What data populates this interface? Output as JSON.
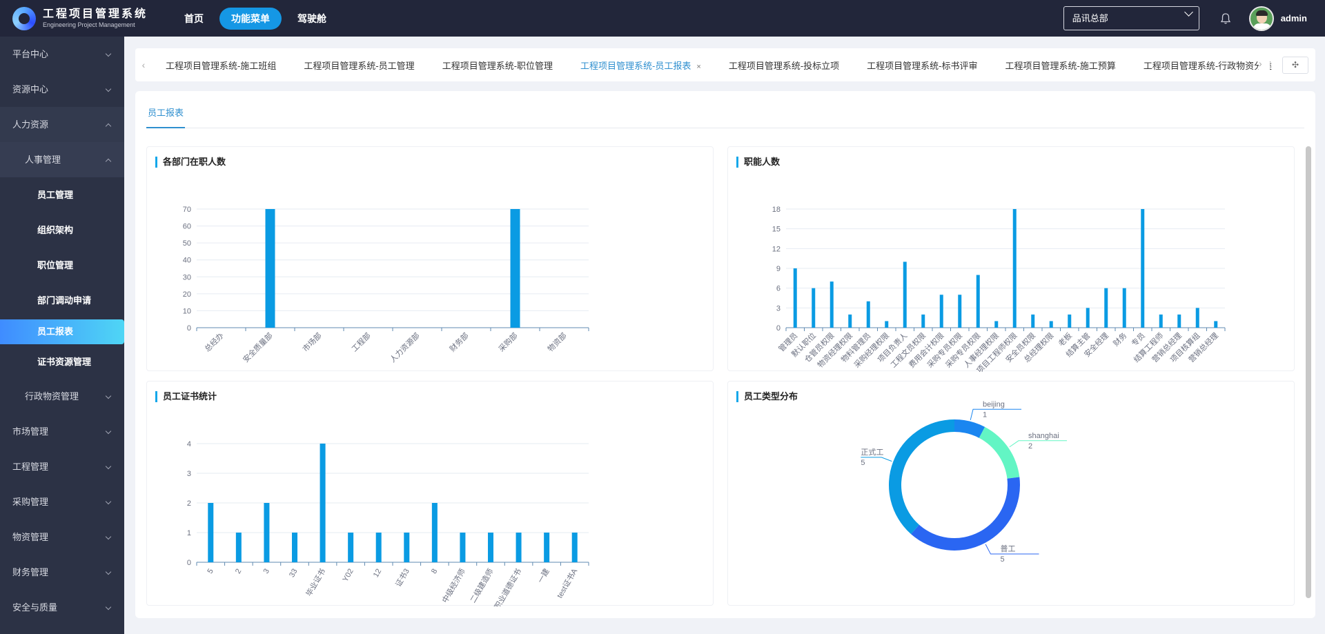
{
  "app": {
    "title": "工程项目管理系统",
    "subtitle": "Engineering Project Management"
  },
  "nav": [
    "首页",
    "功能菜单",
    "驾驶舱"
  ],
  "header": {
    "org": "品讯总部",
    "user": "admin"
  },
  "sidebar": {
    "items": [
      {
        "label": "平台中心",
        "level": 1
      },
      {
        "label": "资源中心",
        "level": 1
      },
      {
        "label": "人力资源",
        "level": 1,
        "open": true
      },
      {
        "label": "人事管理",
        "level": 2,
        "open": true
      },
      {
        "label": "员工管理",
        "level": 3
      },
      {
        "label": "组织架构",
        "level": 3
      },
      {
        "label": "职位管理",
        "level": 3
      },
      {
        "label": "部门调动申请",
        "level": 3
      },
      {
        "label": "员工报表",
        "level": 3,
        "active": true
      },
      {
        "label": "证书资源管理",
        "level": 3
      },
      {
        "label": "行政物资管理",
        "level": 2
      },
      {
        "label": "市场管理",
        "level": 1
      },
      {
        "label": "工程管理",
        "level": 1
      },
      {
        "label": "采购管理",
        "level": 1
      },
      {
        "label": "物资管理",
        "level": 1
      },
      {
        "label": "财务管理",
        "level": 1
      },
      {
        "label": "安全与质量",
        "level": 1
      }
    ]
  },
  "tabs": [
    {
      "label": "工程项目管理系统-施工班组"
    },
    {
      "label": "工程项目管理系统-员工管理"
    },
    {
      "label": "工程项目管理系统-职位管理"
    },
    {
      "label": "工程项目管理系统-员工报表",
      "active": true,
      "close": "×"
    },
    {
      "label": "工程项目管理系统-投标立项"
    },
    {
      "label": "工程项目管理系统-标书评审"
    },
    {
      "label": "工程项目管理系统-施工预算"
    },
    {
      "label": "工程项目管理系统-行政物资分类"
    }
  ],
  "subtab": "员工报表",
  "panels": {
    "dept": "各部门在职人数",
    "role": "职能人数",
    "cert": "员工证书统计",
    "type": "员工类型分布"
  },
  "chart_data": [
    {
      "type": "bar",
      "title": "各部门在职人数",
      "categories": [
        "总经办",
        "安全质量部",
        "市场部",
        "工程部",
        "人力资源部",
        "财务部",
        "采购部",
        "物资部"
      ],
      "values": [
        0,
        70,
        0,
        0,
        0,
        0,
        70,
        0
      ],
      "yticks": [
        0,
        10,
        20,
        30,
        40,
        50,
        60,
        70
      ],
      "ylim": [
        0,
        70
      ],
      "color": "#0a9be3"
    },
    {
      "type": "bar",
      "title": "职能人数",
      "categories": [
        "管理员",
        "默认职位",
        "仓管员权限",
        "物资经理权限",
        "物料管理员",
        "采购经理权限",
        "项目负责人",
        "工程文员权限",
        "费用会计权限",
        "采购专员权限",
        "采购专员权限",
        "人事经理权限",
        "项目工程师权限",
        "安全员权限",
        "总经理权限",
        "老板",
        "结算主管",
        "安全经理",
        "财务",
        "专员",
        "结算工程师",
        "营销总经理",
        "项目核算组",
        "营销总经理"
      ],
      "values": [
        9,
        6,
        7,
        2,
        4,
        1,
        10,
        2,
        5,
        5,
        8,
        1,
        18,
        2,
        1,
        2,
        3,
        6,
        6,
        18,
        2,
        2,
        3,
        1
      ],
      "yticks": [
        0,
        3,
        6,
        9,
        12,
        15,
        18
      ],
      "ylim": [
        0,
        18
      ],
      "color": "#0a9be3"
    },
    {
      "type": "bar",
      "title": "员工证书统计",
      "categories": [
        "5",
        "2",
        "3",
        "33",
        "毕业证书",
        "Y02",
        "12",
        "证书3",
        "8",
        "中级经济师",
        "二级建造师",
        "职业道德证书",
        "一建",
        "test证书A"
      ],
      "values": [
        2,
        1,
        2,
        1,
        4,
        1,
        1,
        1,
        2,
        1,
        1,
        1,
        1,
        1
      ],
      "yticks": [
        0,
        1,
        2,
        3,
        4
      ],
      "ylim": [
        0,
        4
      ],
      "color": "#0a9be3"
    },
    {
      "type": "pie",
      "title": "员工类型分布",
      "slices": [
        {
          "name": "beijing",
          "value": 1,
          "color": "#1a86f0"
        },
        {
          "name": "shanghai",
          "value": 2,
          "color": "#63f5c4"
        },
        {
          "name": "普工",
          "value": 5,
          "color": "#2a66f2"
        },
        {
          "name": "正式工",
          "value": 5,
          "color": "#0a9be3"
        }
      ]
    }
  ]
}
